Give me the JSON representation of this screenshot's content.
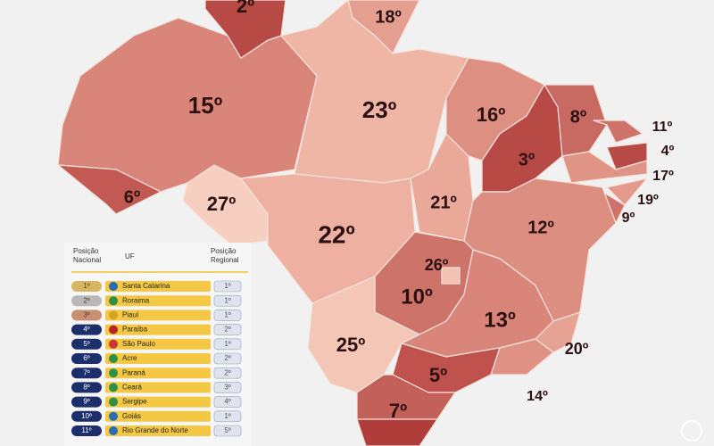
{
  "map": {
    "labels": [
      "2º",
      "18º",
      "15º",
      "23º",
      "16º",
      "8º",
      "11º",
      "4º",
      "3º",
      "17º",
      "6º",
      "27º",
      "21º",
      "19º",
      "9º",
      "22º",
      "12º",
      "26º",
      "10º",
      "13º",
      "25º",
      "20º",
      "5º",
      "14º",
      "7º"
    ]
  },
  "table": {
    "headers": [
      "Posição Nacional",
      "UF",
      "Posição Regional"
    ],
    "rows": [
      [
        "1º",
        "Santa Catarina",
        "1º"
      ],
      [
        "2º",
        "Roraima",
        "1º"
      ],
      [
        "3º",
        "Piauí",
        "1º"
      ],
      [
        "4º",
        "Paraíba",
        "2º"
      ],
      [
        "5º",
        "São Paulo",
        "1º"
      ],
      [
        "6º",
        "Acre",
        "2º"
      ],
      [
        "7º",
        "Paraná",
        "2º"
      ],
      [
        "8º",
        "Ceará",
        "3º"
      ],
      [
        "9º",
        "Sergipe",
        "4º"
      ],
      [
        "10º",
        "Goiás",
        "1º"
      ],
      [
        "11º",
        "Rio Grande do Norte",
        "5º"
      ]
    ]
  }
}
